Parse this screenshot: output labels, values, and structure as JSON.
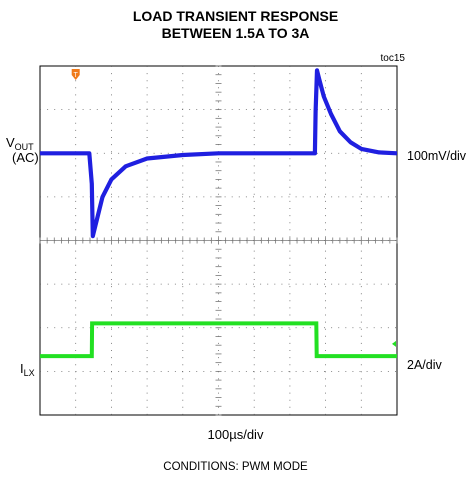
{
  "chart_data": {
    "type": "line",
    "title": "LOAD TRANSIENT RESPONSE",
    "subtitle": "BETWEEN 1.5A TO 3A",
    "figure_id": "toc15",
    "xlabel": "100µs/div",
    "footer": "CONDITIONS:  PWM MODE",
    "x_divisions": 10,
    "y_divisions": 8,
    "grid": true,
    "xlim": [
      0,
      1000
    ],
    "series": [
      {
        "name": "VOUT (AC)",
        "color": "#1f1fe0",
        "label_main": "V",
        "label_sub": "OUT",
        "label_suffix": "(AC)",
        "scale": "100mV/div",
        "baseline_mV": 0,
        "x": [
          0,
          138,
          145,
          148,
          160,
          175,
          200,
          240,
          300,
          400,
          500,
          600,
          700,
          770,
          772,
          776,
          782,
          795,
          815,
          840,
          870,
          900,
          950,
          1000
        ],
        "values": [
          0,
          0,
          -70,
          -190,
          -150,
          -100,
          -60,
          -30,
          -12,
          -4,
          0,
          0,
          0,
          0,
          95,
          190,
          170,
          130,
          90,
          50,
          25,
          10,
          2,
          0
        ]
      },
      {
        "name": "ILX",
        "color": "#22e022",
        "label_main": "I",
        "label_sub": "LX",
        "scale": "2A/div",
        "x": [
          0,
          145,
          146,
          774,
          775,
          1000
        ],
        "values": [
          1.5,
          1.5,
          3.0,
          3.0,
          1.5,
          1.5
        ]
      }
    ]
  }
}
